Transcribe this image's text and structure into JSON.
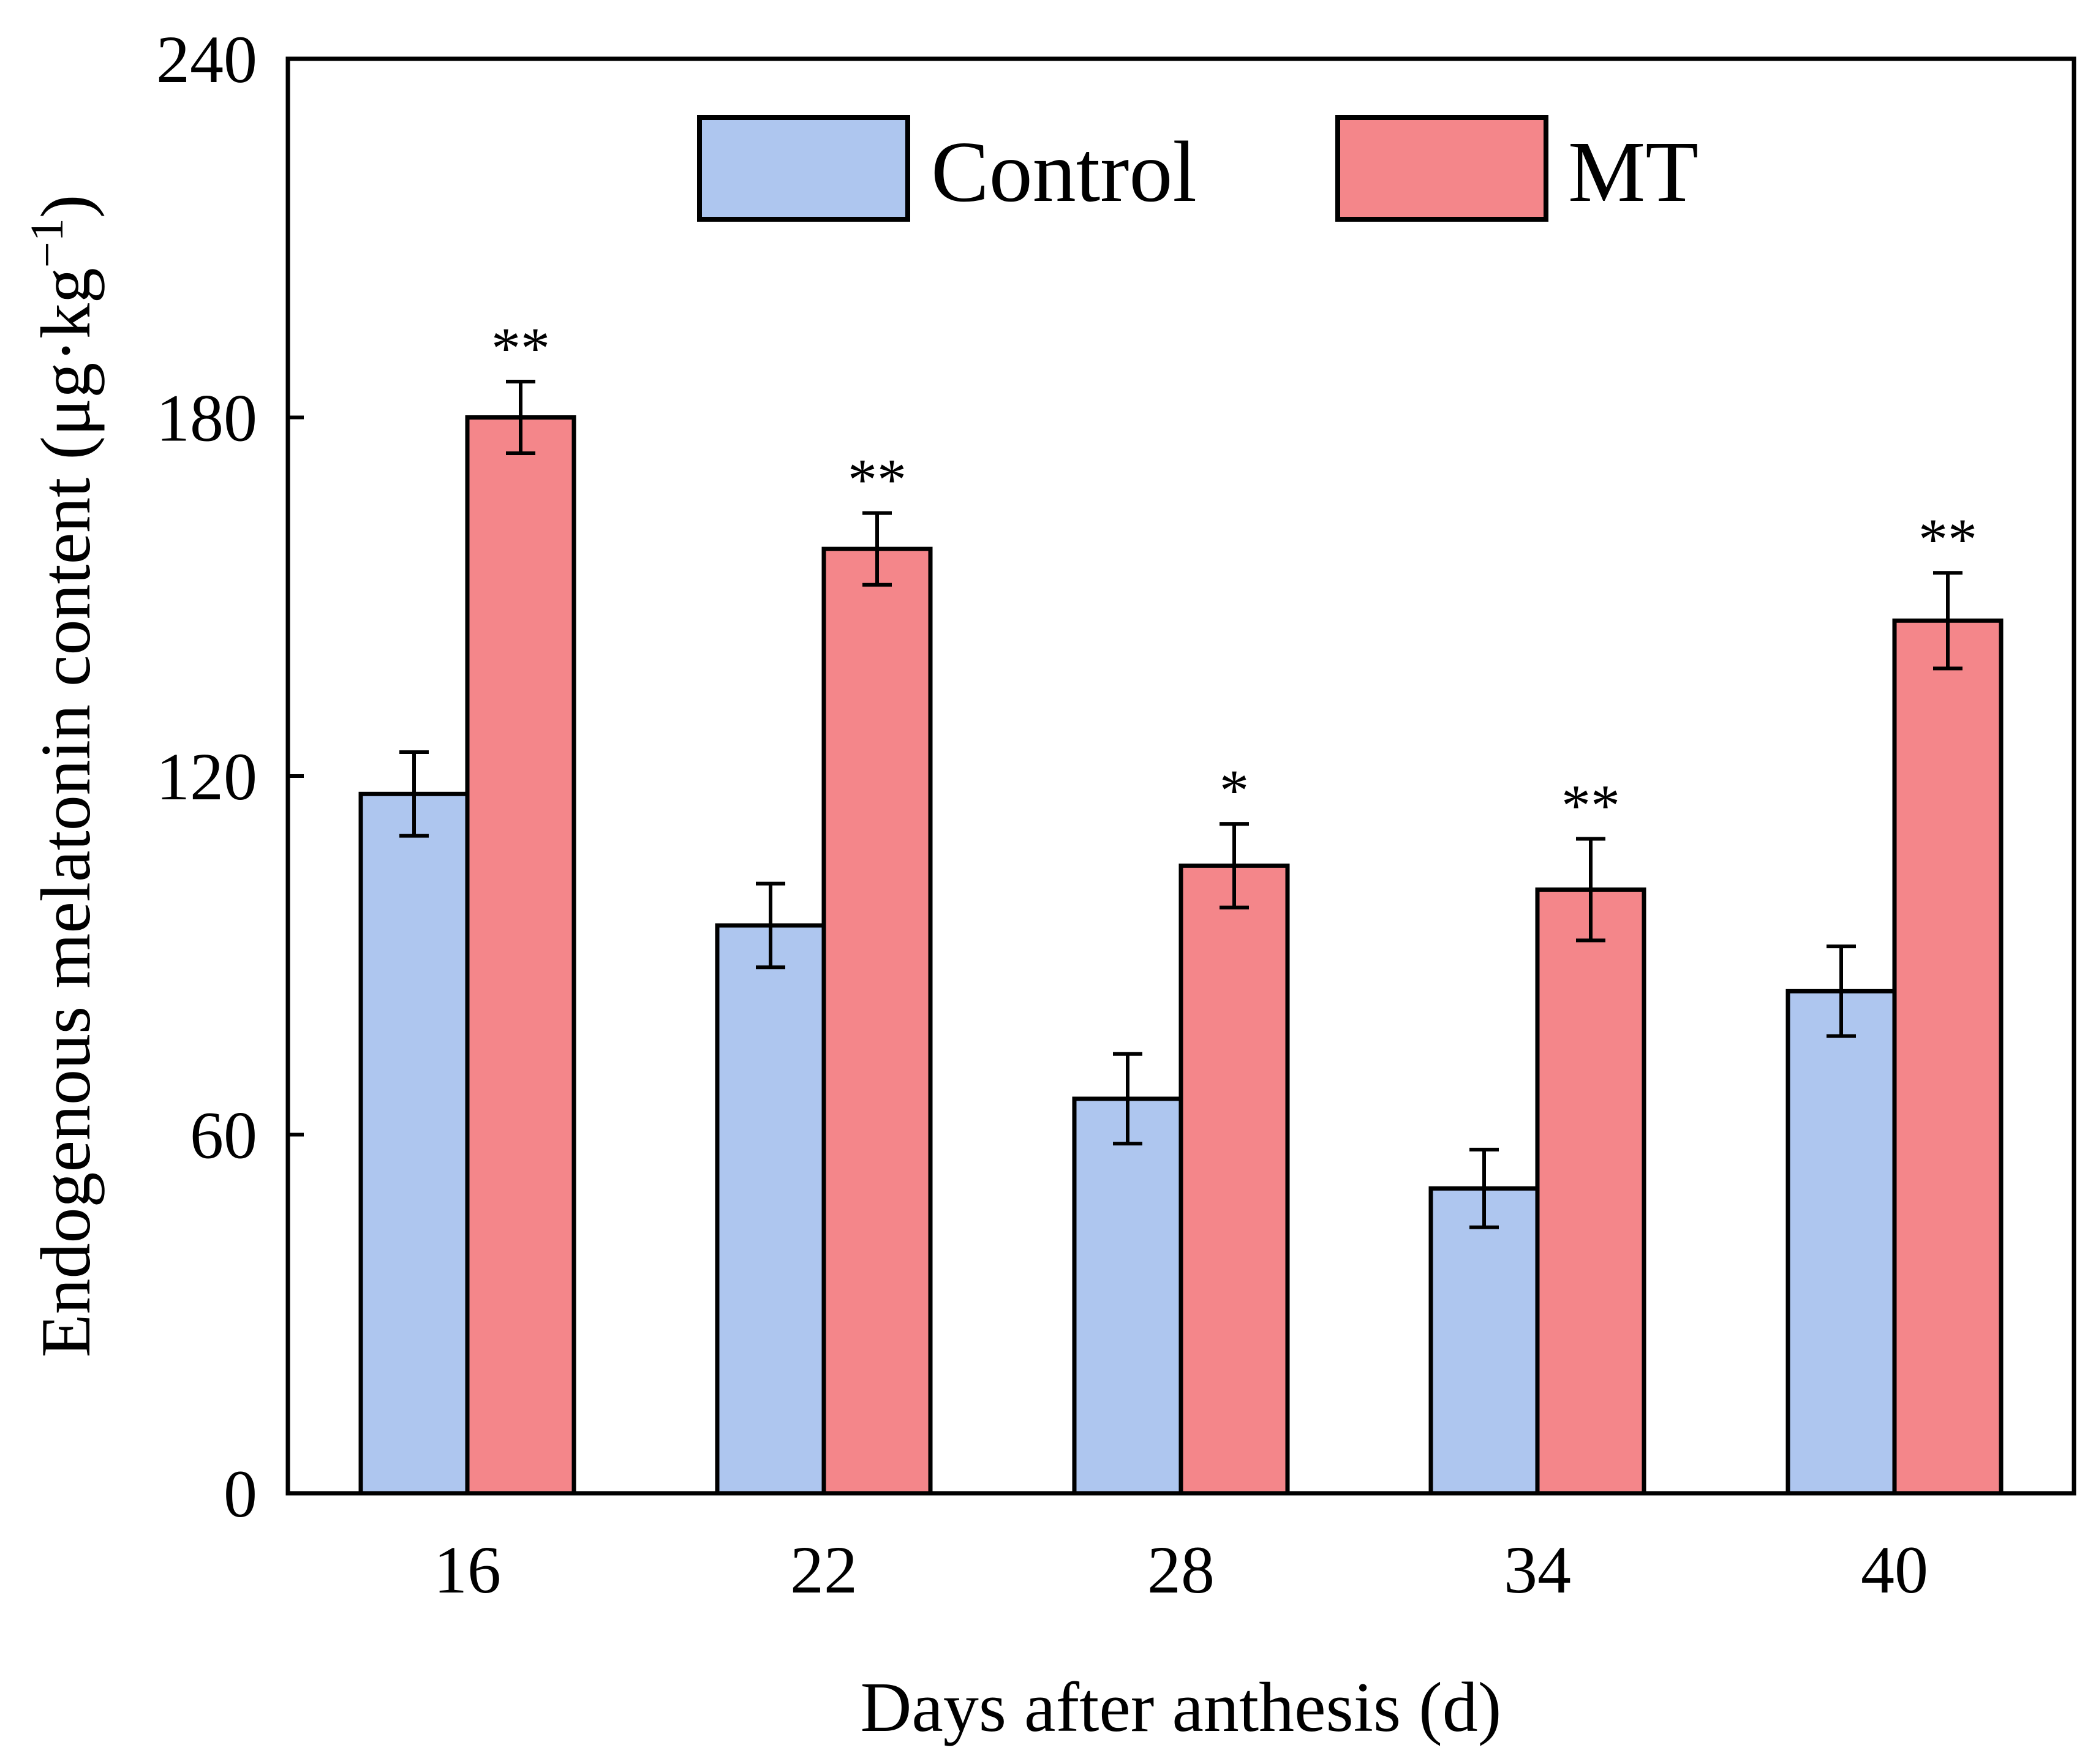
{
  "chart_data": {
    "type": "bar",
    "title": "",
    "xlabel": "Days after anthesis (d)",
    "ylabel": "Endogenous melatonin content (μg·kg",
    "ylabel_superscript": "−1",
    "ylabel_close": ")",
    "categories": [
      "16",
      "22",
      "28",
      "34",
      "40"
    ],
    "ylim": [
      0,
      240
    ],
    "yticks": [
      0,
      60,
      120,
      180,
      240
    ],
    "ytick_labels": [
      "0",
      "60",
      "120",
      "180",
      "240"
    ],
    "grid": false,
    "legend_position": "top-center",
    "series": [
      {
        "name": "Control",
        "color": "#aec6ef",
        "values": [
          117,
          95,
          66,
          51,
          84
        ],
        "errors": [
          7,
          7,
          7.5,
          6.5,
          7.5
        ],
        "significance": [
          "",
          "",
          "",
          "",
          ""
        ]
      },
      {
        "name": "MT",
        "color": "#f4868a",
        "values": [
          180,
          158,
          105,
          101,
          146
        ],
        "errors": [
          6,
          6,
          7,
          8.5,
          8
        ],
        "significance": [
          "**",
          "**",
          "*",
          "**",
          "**"
        ]
      }
    ]
  }
}
